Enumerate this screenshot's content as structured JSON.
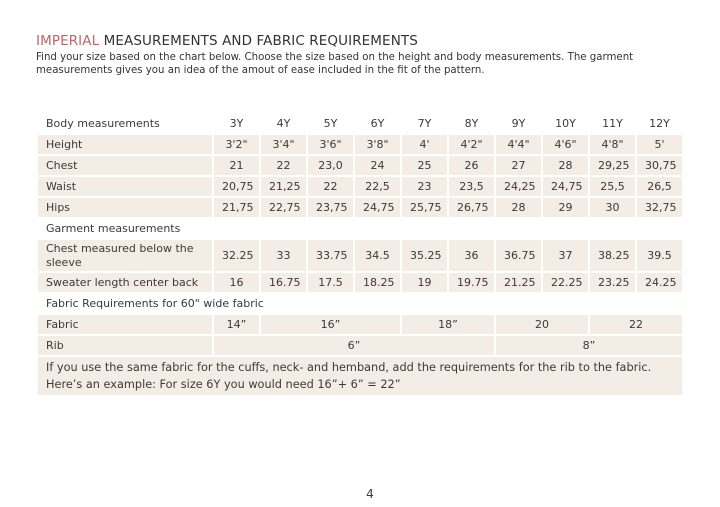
{
  "header": {
    "title_highlight": "IMPERIAL",
    "title_rest": "MEASUREMENTS AND FABRIC REQUIREMENTS",
    "intro": "Find your size based on the chart below. Choose the size based on the height and body measurements. The garment measurements gives you an idea of the amout of ease included in the fit of the pattern."
  },
  "table": {
    "body_header": "Body measurements",
    "sizes": [
      "3Y",
      "4Y",
      "5Y",
      "6Y",
      "7Y",
      "8Y",
      "9Y",
      "10Y",
      "11Y",
      "12Y"
    ],
    "body_rows": [
      {
        "label": "Height",
        "values": [
          "3'2\"",
          "3'4\"",
          "3'6\"",
          "3'8\"",
          "4'",
          "4'2\"",
          "4'4\"",
          "4'6\"",
          "4'8\"",
          "5'"
        ]
      },
      {
        "label": "Chest",
        "values": [
          "21",
          "22",
          "23,0",
          "24",
          "25",
          "26",
          "27",
          "28",
          "29,25",
          "30,75"
        ]
      },
      {
        "label": "Waist",
        "values": [
          "20,75",
          "21,25",
          "22",
          "22,5",
          "23",
          "23,5",
          "24,25",
          "24,75",
          "25,5",
          "26,5"
        ]
      },
      {
        "label": "Hips",
        "values": [
          "21,75",
          "22,75",
          "23,75",
          "24,75",
          "25,75",
          "26,75",
          "28",
          "29",
          "30",
          "32,75"
        ]
      }
    ],
    "garment_header": "Garment measurements",
    "garment_rows": [
      {
        "label": "Chest measured below the sleeve",
        "values": [
          "32.25",
          "33",
          "33.75",
          "34.5",
          "35.25",
          "36",
          "36.75",
          "37",
          "38.25",
          "39.5"
        ]
      },
      {
        "label": "Sweater length center back",
        "values": [
          "16",
          "16.75",
          "17.5",
          "18.25",
          "19",
          "19.75",
          "21.25",
          "22.25",
          "23.25",
          "24.25"
        ]
      }
    ],
    "fabric_header": "Fabric Requirements for  60\" wide fabric",
    "fabric": {
      "label": "Fabric",
      "values": [
        "14”",
        "16”",
        "18”",
        "20",
        "22"
      ]
    },
    "rib": {
      "label": "Rib",
      "values": [
        "6”",
        "8”"
      ]
    },
    "note": "If you use the same fabric for the cuffs, neck- and hemband, add the requirements for the rib to the fabric. Here’s an example: For size 6Y you would need 16”+ 6” = 22”"
  },
  "footer": {
    "page_number": "4"
  }
}
